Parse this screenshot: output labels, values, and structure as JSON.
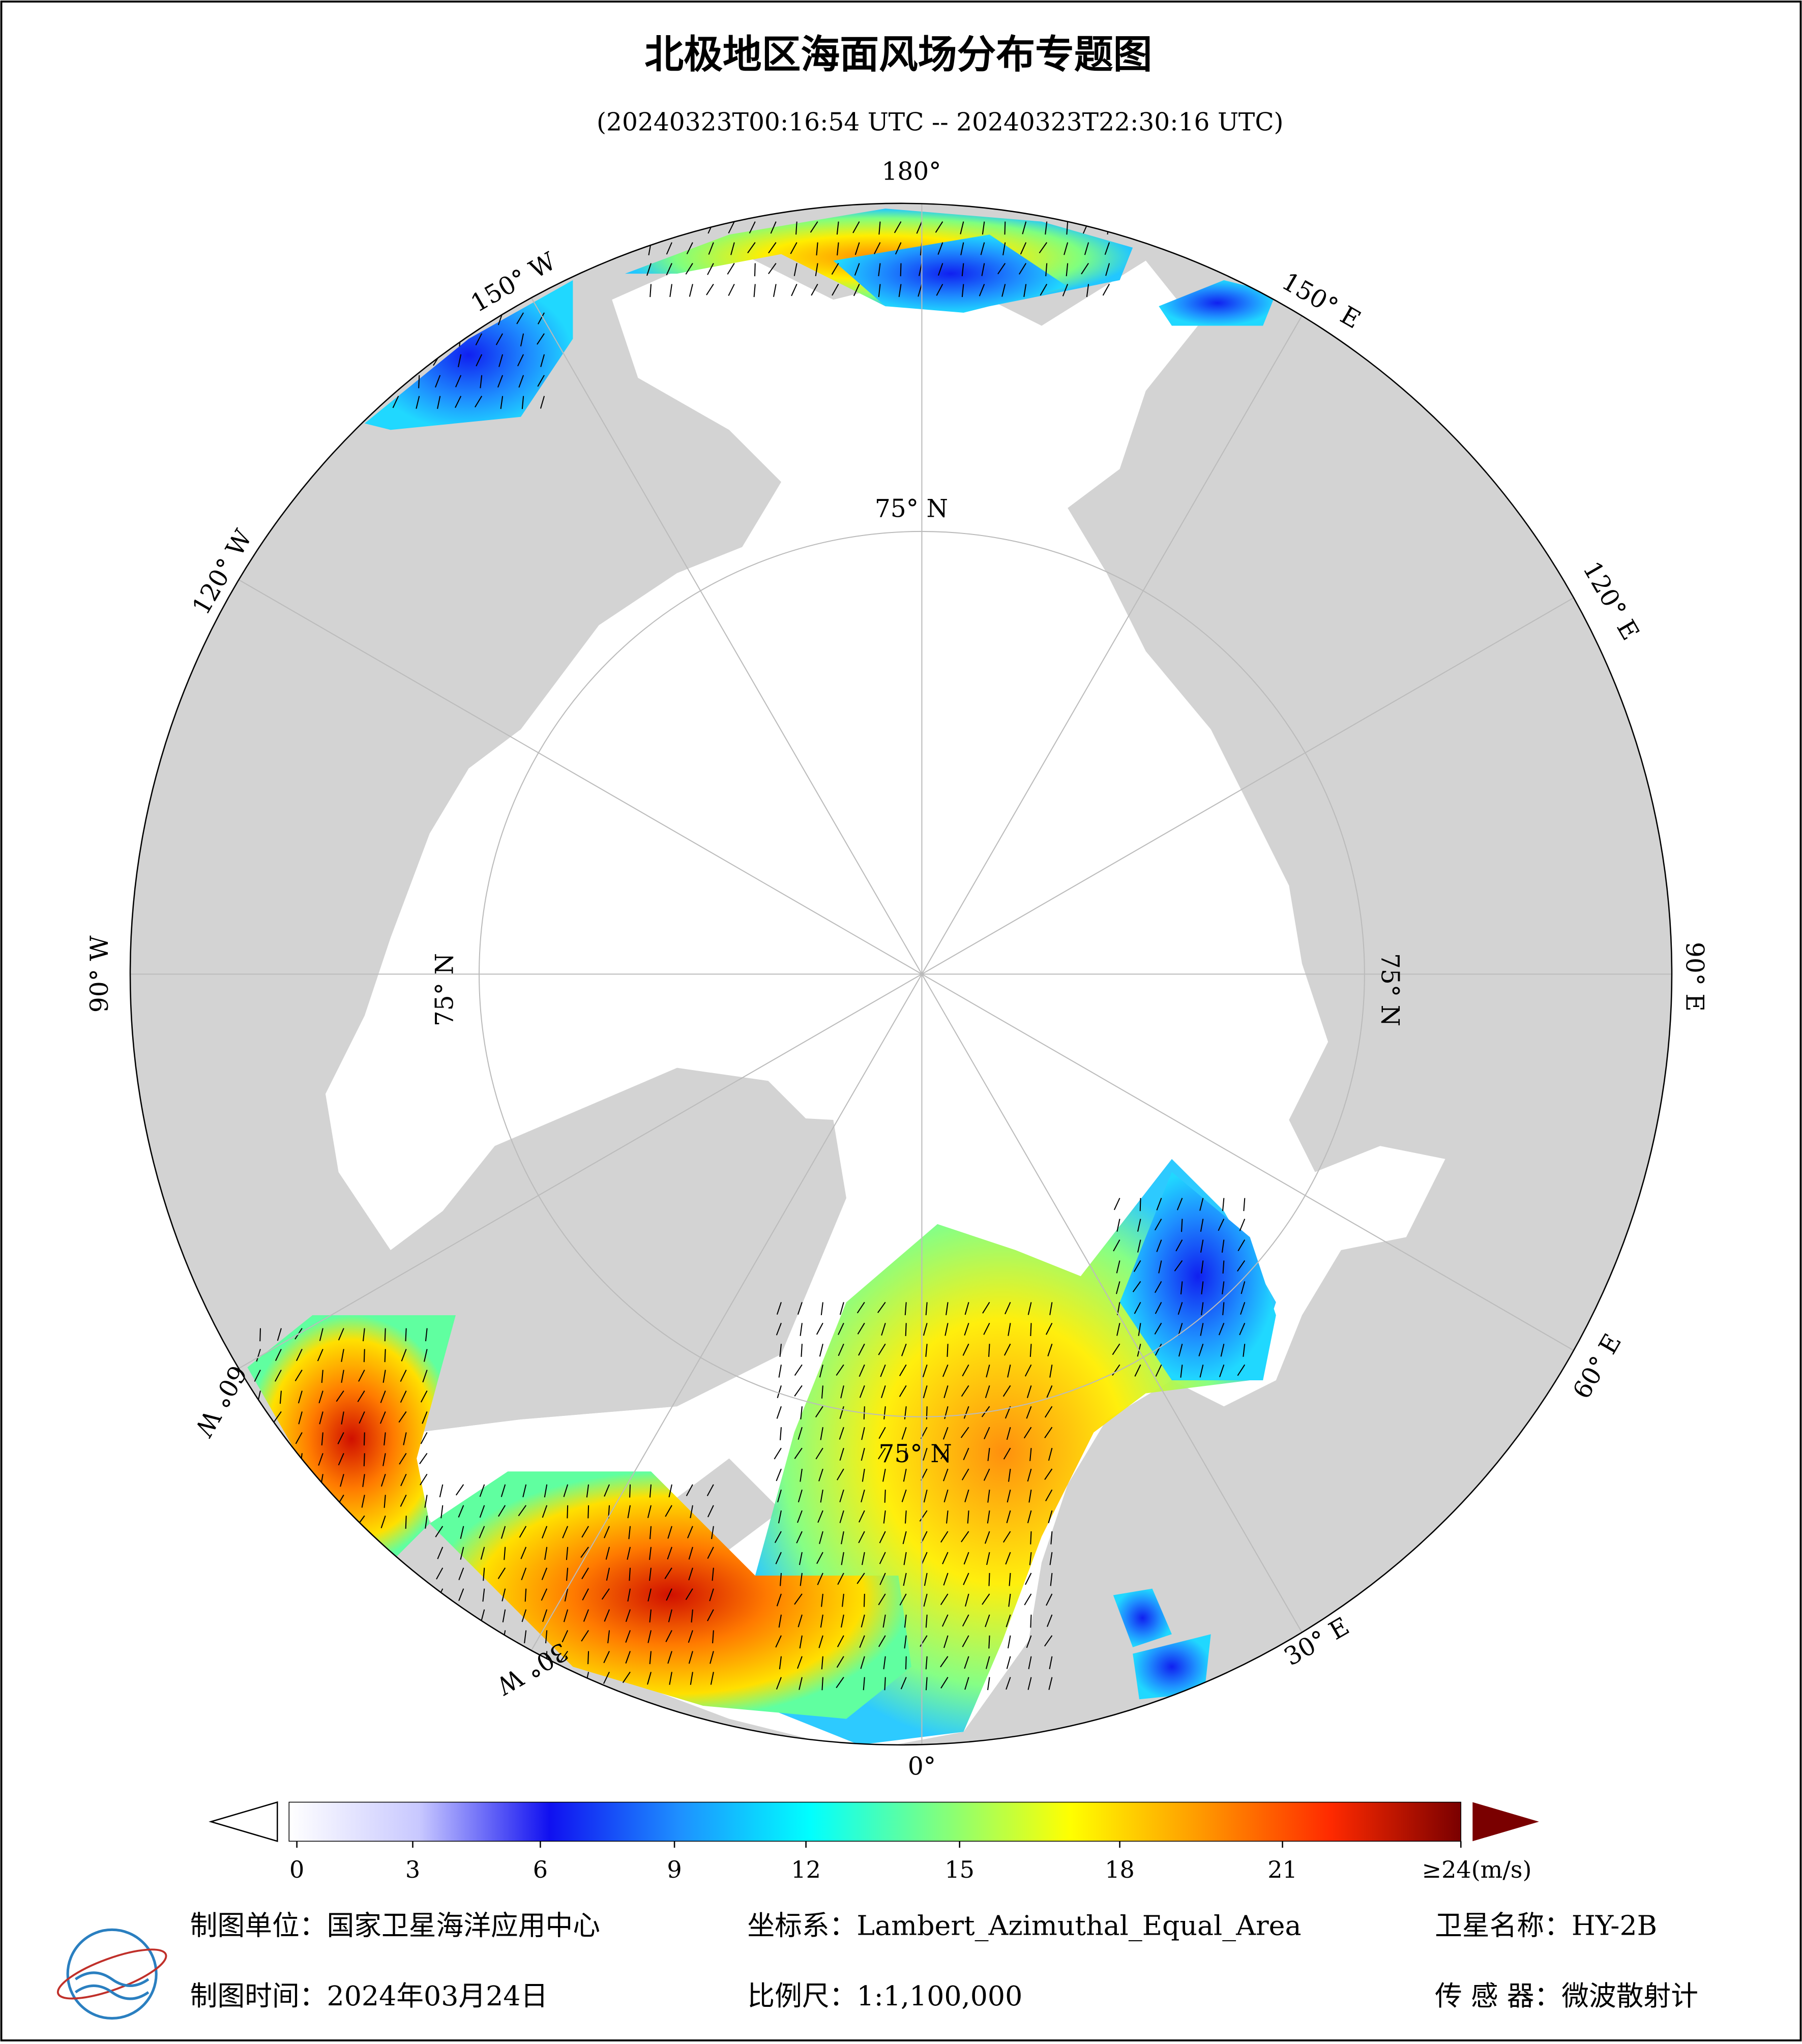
{
  "title": "北极地区海面风场分布专题图",
  "subtitle": "(20240323T00:16:54 UTC -- 20240323T22:30:16 UTC)",
  "longitude_labels": [
    "180°",
    "150° W",
    "120° W",
    "90° W",
    "60° W",
    "30° W",
    "0°",
    "30° E",
    "60° E",
    "90° E",
    "120° E",
    "150° E"
  ],
  "latitude_labels": [
    "75° N",
    "75° N",
    "75° N",
    "75° N"
  ],
  "colorbar": {
    "lim": [
      0,
      24
    ],
    "ticks": [
      0,
      3,
      6,
      9,
      12,
      15,
      18,
      21,
      {
        "value": 24,
        "label": "≥24(m/s)"
      }
    ],
    "colors": [
      "#ffffff",
      "#c8c8ff",
      "#1010f0",
      "#1e90ff",
      "#00ffff",
      "#7fff7f",
      "#ffff00",
      "#ff9900",
      "#ff2a00",
      "#7a0000"
    ]
  },
  "footer": {
    "unit": "制图单位：国家卫星海洋应用中心",
    "projection": "坐标系：Lambert_Azimuthal_Equal_Area",
    "satellite": "卫星名称：HY-2B",
    "date": "制图时间：2024年03月24日",
    "scale": "比例尺：1:1,100,000",
    "sensor": "传 感 器：微波散射计"
  }
}
